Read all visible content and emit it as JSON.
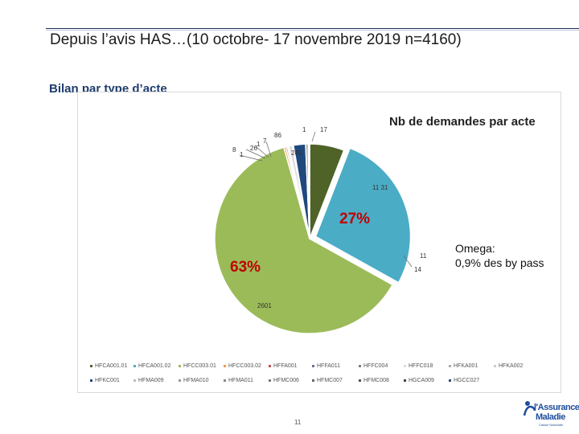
{
  "header": {
    "title": "Depuis l’avis HAS…(10 octobre- 17 novembre 2019 n=4160)",
    "section_title": "Bilan par type d’acte"
  },
  "chart_data": {
    "type": "pie",
    "title": "Nb de demandes par acte",
    "categories": [
      "HFCA001.01",
      "HFCA001.02",
      "HFCC003.01",
      "HFCC003.02",
      "HFFA001",
      "HFFA011",
      "HFFC004",
      "HFFC018",
      "HFKA001",
      "HFKA002",
      "HFKC001",
      "HFMA009",
      "HFMA010",
      "HFMA011",
      "HFMC006",
      "HFMC007",
      "HFMC008",
      "HGCA009",
      "HGCC027"
    ],
    "values": [
      245,
      1131,
      2601,
      14,
      11,
      8,
      1,
      26,
      1,
      7,
      86,
      1,
      17,
      1,
      1,
      1,
      1,
      1,
      5
    ],
    "data_labels": [
      "245",
      "11 31",
      "2601",
      "14",
      "11",
      "8",
      "1",
      "26",
      "1",
      "7",
      "86",
      "1",
      "17",
      "1",
      "1",
      "1",
      "1",
      "1",
      "5"
    ],
    "colors": [
      "#4f6228",
      "#4bacc6",
      "#9bbb59",
      "#f79646",
      "#c0504d",
      "#8064a2",
      "#7f7f7f",
      "#dddddd",
      "#aaaaaa",
      "#cccccc",
      "#1f497d",
      "#bbbbbb",
      "#999999",
      "#888888",
      "#777777",
      "#666666",
      "#555555",
      "#444444",
      "#2c4d75"
    ],
    "percent_labels": [
      {
        "text": "27%",
        "color": "#c00000"
      },
      {
        "text": "63%",
        "color": "#c00000"
      }
    ],
    "legend_position": "bottom"
  },
  "note": {
    "line1": "Omega:",
    "line2": "0,9% des by pass"
  },
  "legend": {
    "row1": [
      "HFCA001.01",
      "HFCA001.02",
      "HFCC003.01",
      "HFCC003.02",
      "HFFA001",
      "HFFA011",
      "HFFC004",
      "HFFC018",
      "HFKA001",
      "HFKA002"
    ],
    "row2": [
      "HFKC001",
      "HFMA009",
      "HFMA010",
      "HFMA011",
      "HFMC006",
      "HFMC007",
      "HFMC008",
      "HGCA009",
      "HGCC027"
    ]
  },
  "footer": {
    "page_number": "11",
    "logo_line1": "l'Assurance",
    "logo_line2": "Maladie",
    "logo_sub": "Caisse Nationale"
  }
}
